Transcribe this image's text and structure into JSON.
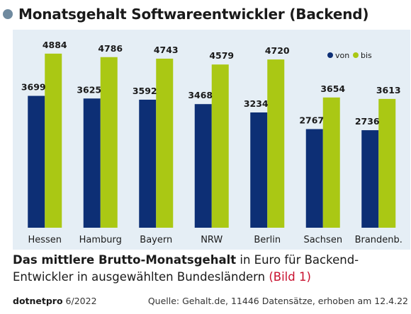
{
  "header": {
    "title": "Monatsgehalt Softwareentwickler (Backend)"
  },
  "chart_data": {
    "type": "bar",
    "categories": [
      "Hessen",
      "Hamburg",
      "Bayern",
      "NRW",
      "Berlin",
      "Sachsen",
      "Brandenb."
    ],
    "series": [
      {
        "name": "von",
        "color": "#0d2f75",
        "values": [
          3699,
          3625,
          3592,
          3468,
          3234,
          2767,
          2736
        ]
      },
      {
        "name": "bis",
        "color": "#aac814",
        "values": [
          4884,
          4786,
          4743,
          4579,
          4720,
          3654,
          3613
        ]
      }
    ],
    "ylim": [
      0,
      4960
    ],
    "grid": false,
    "legend": "top-right"
  },
  "caption": {
    "bold": "Das mittlere Brutto-Monatsgehalt",
    "rest": " in Euro für Backend-Entwickler in ausgewählten Bundesländern ",
    "ref": "(Bild 1)"
  },
  "footer": {
    "brand": "dotnetpro",
    "issue": " 6/2022",
    "source": "Quelle: Gehalt.de, 11446 Datensätze, erhoben am 12.4.22"
  }
}
